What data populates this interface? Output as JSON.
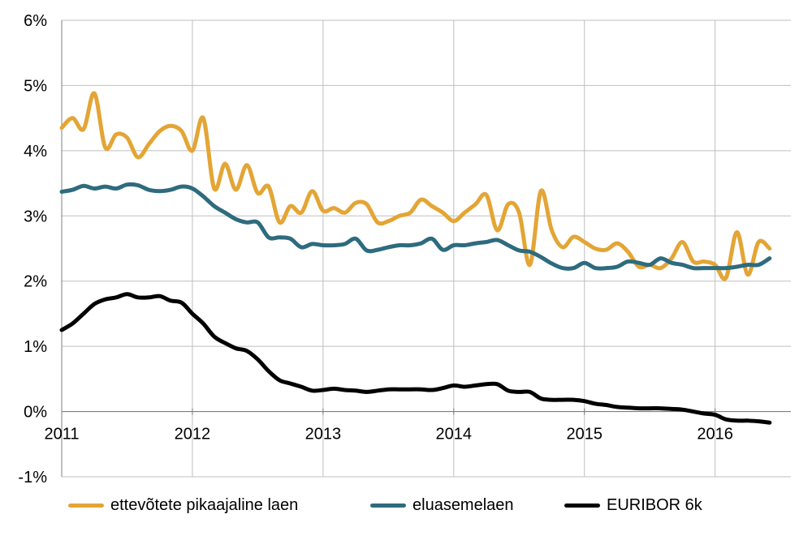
{
  "chart_data": {
    "type": "line",
    "title": "",
    "xlabel": "",
    "ylabel": "",
    "x_ticks": [
      "2011",
      "2012",
      "2013",
      "2014",
      "2015",
      "2016"
    ],
    "y_ticks": [
      "-1%",
      "0%",
      "1%",
      "2%",
      "3%",
      "4%",
      "5%",
      "6%"
    ],
    "xlim": [
      2011.0,
      2016.58
    ],
    "ylim": [
      -1,
      6
    ],
    "grid": true,
    "legend_position": "bottom",
    "series": [
      {
        "name": "ettevõtete pikaajaline laen",
        "color": "#E3A535",
        "points": [
          [
            2011.0,
            4.35
          ],
          [
            2011.083,
            4.5
          ],
          [
            2011.167,
            4.33
          ],
          [
            2011.25,
            4.88
          ],
          [
            2011.333,
            4.05
          ],
          [
            2011.417,
            4.25
          ],
          [
            2011.5,
            4.2
          ],
          [
            2011.583,
            3.9
          ],
          [
            2011.667,
            4.1
          ],
          [
            2011.75,
            4.3
          ],
          [
            2011.833,
            4.38
          ],
          [
            2011.917,
            4.3
          ],
          [
            2012.0,
            4.0
          ],
          [
            2012.083,
            4.5
          ],
          [
            2012.167,
            3.42
          ],
          [
            2012.25,
            3.8
          ],
          [
            2012.333,
            3.4
          ],
          [
            2012.417,
            3.78
          ],
          [
            2012.5,
            3.35
          ],
          [
            2012.583,
            3.45
          ],
          [
            2012.667,
            2.9
          ],
          [
            2012.75,
            3.15
          ],
          [
            2012.833,
            3.05
          ],
          [
            2012.917,
            3.38
          ],
          [
            2013.0,
            3.08
          ],
          [
            2013.083,
            3.12
          ],
          [
            2013.167,
            3.05
          ],
          [
            2013.25,
            3.2
          ],
          [
            2013.333,
            3.18
          ],
          [
            2013.417,
            2.9
          ],
          [
            2013.5,
            2.92
          ],
          [
            2013.583,
            3.0
          ],
          [
            2013.667,
            3.05
          ],
          [
            2013.75,
            3.25
          ],
          [
            2013.833,
            3.15
          ],
          [
            2013.917,
            3.05
          ],
          [
            2014.0,
            2.92
          ],
          [
            2014.083,
            3.05
          ],
          [
            2014.167,
            3.18
          ],
          [
            2014.25,
            3.32
          ],
          [
            2014.333,
            2.78
          ],
          [
            2014.417,
            3.18
          ],
          [
            2014.5,
            3.05
          ],
          [
            2014.583,
            2.25
          ],
          [
            2014.667,
            3.38
          ],
          [
            2014.75,
            2.78
          ],
          [
            2014.833,
            2.52
          ],
          [
            2014.917,
            2.68
          ],
          [
            2015.0,
            2.6
          ],
          [
            2015.083,
            2.5
          ],
          [
            2015.167,
            2.48
          ],
          [
            2015.25,
            2.58
          ],
          [
            2015.333,
            2.45
          ],
          [
            2015.417,
            2.22
          ],
          [
            2015.5,
            2.25
          ],
          [
            2015.583,
            2.2
          ],
          [
            2015.667,
            2.35
          ],
          [
            2015.75,
            2.6
          ],
          [
            2015.833,
            2.3
          ],
          [
            2015.917,
            2.3
          ],
          [
            2016.0,
            2.25
          ],
          [
            2016.083,
            2.05
          ],
          [
            2016.167,
            2.75
          ],
          [
            2016.25,
            2.1
          ],
          [
            2016.333,
            2.6
          ],
          [
            2016.417,
            2.5
          ]
        ]
      },
      {
        "name": "eluasemelaen",
        "color": "#2E6B7E",
        "points": [
          [
            2011.0,
            3.37
          ],
          [
            2011.083,
            3.4
          ],
          [
            2011.167,
            3.46
          ],
          [
            2011.25,
            3.42
          ],
          [
            2011.333,
            3.45
          ],
          [
            2011.417,
            3.42
          ],
          [
            2011.5,
            3.48
          ],
          [
            2011.583,
            3.47
          ],
          [
            2011.667,
            3.4
          ],
          [
            2011.75,
            3.38
          ],
          [
            2011.833,
            3.4
          ],
          [
            2011.917,
            3.45
          ],
          [
            2012.0,
            3.42
          ],
          [
            2012.083,
            3.3
          ],
          [
            2012.167,
            3.15
          ],
          [
            2012.25,
            3.05
          ],
          [
            2012.333,
            2.95
          ],
          [
            2012.417,
            2.9
          ],
          [
            2012.5,
            2.9
          ],
          [
            2012.583,
            2.67
          ],
          [
            2012.667,
            2.67
          ],
          [
            2012.75,
            2.65
          ],
          [
            2012.833,
            2.52
          ],
          [
            2012.917,
            2.57
          ],
          [
            2013.0,
            2.55
          ],
          [
            2013.083,
            2.55
          ],
          [
            2013.167,
            2.57
          ],
          [
            2013.25,
            2.65
          ],
          [
            2013.333,
            2.47
          ],
          [
            2013.417,
            2.48
          ],
          [
            2013.5,
            2.52
          ],
          [
            2013.583,
            2.55
          ],
          [
            2013.667,
            2.55
          ],
          [
            2013.75,
            2.58
          ],
          [
            2013.833,
            2.65
          ],
          [
            2013.917,
            2.48
          ],
          [
            2014.0,
            2.55
          ],
          [
            2014.083,
            2.55
          ],
          [
            2014.167,
            2.58
          ],
          [
            2014.25,
            2.6
          ],
          [
            2014.333,
            2.63
          ],
          [
            2014.417,
            2.55
          ],
          [
            2014.5,
            2.47
          ],
          [
            2014.583,
            2.45
          ],
          [
            2014.667,
            2.37
          ],
          [
            2014.75,
            2.27
          ],
          [
            2014.833,
            2.2
          ],
          [
            2014.917,
            2.2
          ],
          [
            2015.0,
            2.28
          ],
          [
            2015.083,
            2.2
          ],
          [
            2015.167,
            2.2
          ],
          [
            2015.25,
            2.22
          ],
          [
            2015.333,
            2.3
          ],
          [
            2015.417,
            2.28
          ],
          [
            2015.5,
            2.25
          ],
          [
            2015.583,
            2.35
          ],
          [
            2015.667,
            2.28
          ],
          [
            2015.75,
            2.25
          ],
          [
            2015.833,
            2.2
          ],
          [
            2015.917,
            2.2
          ],
          [
            2016.0,
            2.2
          ],
          [
            2016.083,
            2.2
          ],
          [
            2016.167,
            2.22
          ],
          [
            2016.25,
            2.25
          ],
          [
            2016.333,
            2.25
          ],
          [
            2016.417,
            2.35
          ]
        ]
      },
      {
        "name": "EURIBOR 6k",
        "color": "#000000",
        "points": [
          [
            2011.0,
            1.25
          ],
          [
            2011.083,
            1.35
          ],
          [
            2011.167,
            1.5
          ],
          [
            2011.25,
            1.65
          ],
          [
            2011.333,
            1.72
          ],
          [
            2011.417,
            1.75
          ],
          [
            2011.5,
            1.8
          ],
          [
            2011.583,
            1.75
          ],
          [
            2011.667,
            1.75
          ],
          [
            2011.75,
            1.77
          ],
          [
            2011.833,
            1.7
          ],
          [
            2011.917,
            1.67
          ],
          [
            2012.0,
            1.5
          ],
          [
            2012.083,
            1.35
          ],
          [
            2012.167,
            1.15
          ],
          [
            2012.25,
            1.05
          ],
          [
            2012.333,
            0.97
          ],
          [
            2012.417,
            0.93
          ],
          [
            2012.5,
            0.8
          ],
          [
            2012.583,
            0.62
          ],
          [
            2012.667,
            0.48
          ],
          [
            2012.75,
            0.43
          ],
          [
            2012.833,
            0.38
          ],
          [
            2012.917,
            0.32
          ],
          [
            2013.0,
            0.33
          ],
          [
            2013.083,
            0.35
          ],
          [
            2013.167,
            0.33
          ],
          [
            2013.25,
            0.32
          ],
          [
            2013.333,
            0.3
          ],
          [
            2013.417,
            0.32
          ],
          [
            2013.5,
            0.34
          ],
          [
            2013.583,
            0.34
          ],
          [
            2013.667,
            0.34
          ],
          [
            2013.75,
            0.34
          ],
          [
            2013.833,
            0.33
          ],
          [
            2013.917,
            0.36
          ],
          [
            2014.0,
            0.4
          ],
          [
            2014.083,
            0.38
          ],
          [
            2014.167,
            0.4
          ],
          [
            2014.25,
            0.42
          ],
          [
            2014.333,
            0.42
          ],
          [
            2014.417,
            0.32
          ],
          [
            2014.5,
            0.3
          ],
          [
            2014.583,
            0.3
          ],
          [
            2014.667,
            0.2
          ],
          [
            2014.75,
            0.18
          ],
          [
            2014.833,
            0.18
          ],
          [
            2014.917,
            0.18
          ],
          [
            2015.0,
            0.16
          ],
          [
            2015.083,
            0.12
          ],
          [
            2015.167,
            0.1
          ],
          [
            2015.25,
            0.07
          ],
          [
            2015.333,
            0.06
          ],
          [
            2015.417,
            0.05
          ],
          [
            2015.5,
            0.05
          ],
          [
            2015.583,
            0.05
          ],
          [
            2015.667,
            0.04
          ],
          [
            2015.75,
            0.03
          ],
          [
            2015.833,
            0.0
          ],
          [
            2015.917,
            -0.03
          ],
          [
            2016.0,
            -0.05
          ],
          [
            2016.083,
            -0.12
          ],
          [
            2016.167,
            -0.14
          ],
          [
            2016.25,
            -0.14
          ],
          [
            2016.333,
            -0.15
          ],
          [
            2016.417,
            -0.17
          ]
        ]
      }
    ]
  }
}
